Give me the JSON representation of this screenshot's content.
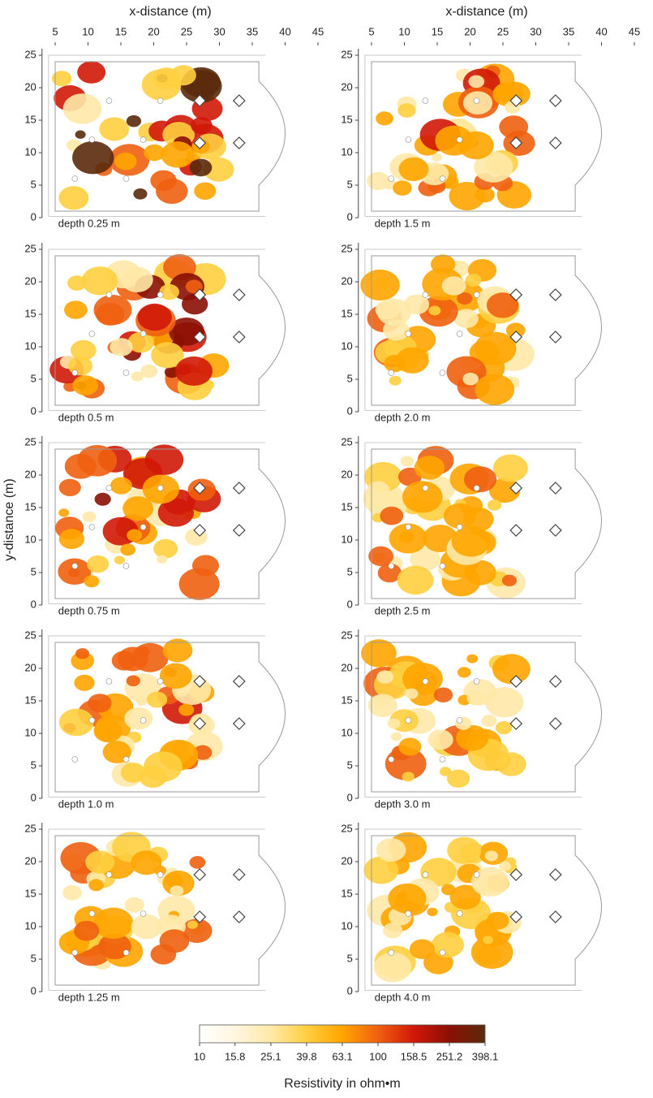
{
  "chart_data": {
    "type": "contour_map",
    "x_label": "x-distance (m)",
    "y_label": "y-distance (m)",
    "xlim": [
      3,
      46
    ],
    "ylim": [
      0,
      26
    ],
    "xticks": [
      5,
      10,
      15,
      20,
      25,
      30,
      35,
      40,
      45
    ],
    "yticks": [
      0,
      5,
      10,
      15,
      20,
      25
    ],
    "panels": [
      "depth 0.25 m",
      "depth 1.5 m",
      "depth 0.5 m",
      "depth 2.0 m",
      "depth 0.75 m",
      "depth 2.5 m",
      "depth 1.0 m",
      "depth 3.0 m",
      "depth 1.25 m",
      "depth 4.0 m"
    ],
    "colorbar": {
      "title": "Resistivity in ohm•m",
      "log": true,
      "lim": [
        10,
        398.1
      ],
      "ticks": [
        10,
        15.8,
        25.1,
        39.8,
        63.1,
        100,
        158.5,
        251.2,
        398.1
      ],
      "colors": [
        "#ffffff",
        "#fff6e0",
        "#ffe9a8",
        "#ffcf40",
        "#ffa500",
        "#f06010",
        "#d01808",
        "#8a1004",
        "#5a2a0c"
      ]
    }
  }
}
